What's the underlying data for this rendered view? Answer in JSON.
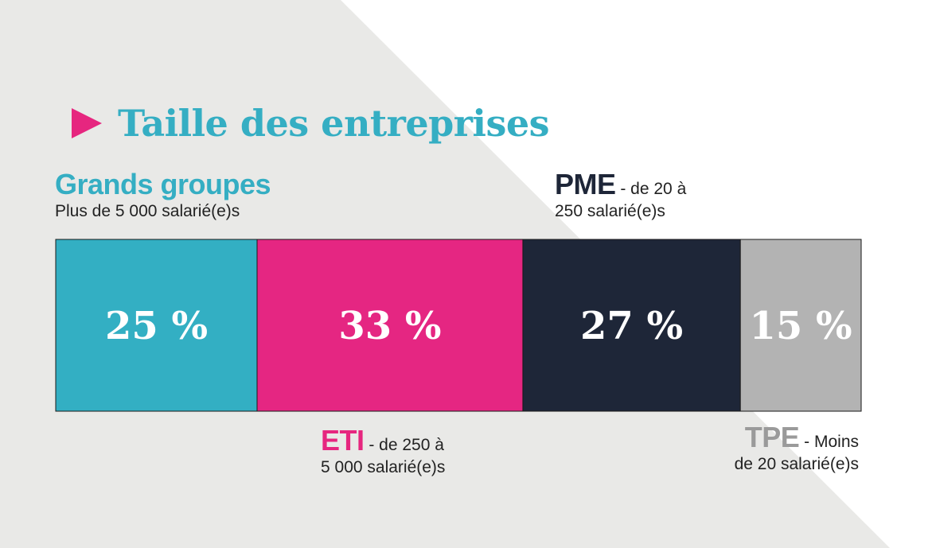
{
  "title": "Taille des entreprises",
  "colors": {
    "title": "#35aec3",
    "arrow": "#e6267f",
    "background_gray": "#e9e9e7"
  },
  "chart_data": {
    "type": "bar",
    "subtype": "stacked-100",
    "categories": [
      "Grands groupes",
      "ETI",
      "PME",
      "TPE"
    ],
    "values": [
      25,
      33,
      27,
      15
    ],
    "value_labels": [
      "25 %",
      "33 %",
      "27 %",
      "15 %"
    ],
    "colors": [
      "#33afc3",
      "#e52682",
      "#1e2638",
      "#b3b3b3"
    ],
    "label_colors": [
      "#35aec3",
      "#e6267f",
      "#1e2638",
      "#9a9a9a"
    ],
    "descriptions": [
      [
        "Plus de 5 000 salarié(e)s"
      ],
      [
        " - de 250 à",
        "5 000 salarié(e)s"
      ],
      [
        " - de 20 à",
        "250 salarié(e)s"
      ],
      [
        " - Moins",
        "de 20 salarié(e)s"
      ]
    ]
  }
}
